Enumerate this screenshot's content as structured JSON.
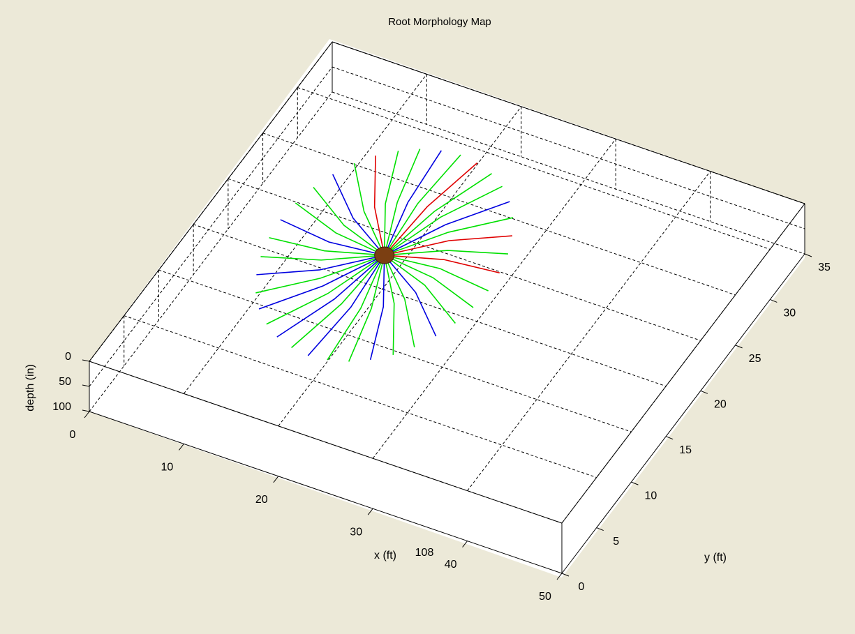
{
  "chart_data": {
    "type": "root-map-3d",
    "title": "Root Morphology Map",
    "xlabel": "x (ft)",
    "ylabel": "y (ft)",
    "zlabel": "depth (in)",
    "annotation": "108",
    "xlim": [
      0,
      50
    ],
    "xticks": [
      0,
      10,
      20,
      30,
      40,
      50
    ],
    "ylim": [
      0,
      35
    ],
    "yticks": [
      0,
      5,
      10,
      15,
      20,
      25,
      30,
      35
    ],
    "zlim": [
      0,
      100
    ],
    "zticks": [
      0,
      50,
      100
    ],
    "grid": true,
    "trunk": {
      "x": 18,
      "y": 18,
      "color": "#7b3f12"
    },
    "roots": [
      {
        "color": "#00e000",
        "x": [
          18,
          23.5,
          29
        ],
        "y": [
          18,
          18.5,
          18
        ]
      },
      {
        "color": "#e00000",
        "x": [
          18,
          23.3,
          28.8
        ],
        "y": [
          18,
          19.4,
          19.9
        ]
      },
      {
        "color": "#00e000",
        "x": [
          18,
          23.0,
          28.3
        ],
        "y": [
          18,
          20.3,
          21.8
        ]
      },
      {
        "color": "#e00000",
        "x": [
          18,
          22.5,
          27.5
        ],
        "y": [
          18,
          21.2,
          23.5
        ]
      },
      {
        "color": "#00e000",
        "x": [
          18,
          21.9,
          26.4
        ],
        "y": [
          18,
          21.9,
          25.1
        ]
      },
      {
        "color": "#0000e0",
        "x": [
          18,
          21.2,
          25.1
        ],
        "y": [
          18,
          22.5,
          26.4
        ]
      },
      {
        "color": "#00e000",
        "x": [
          18,
          20.3,
          23.5
        ],
        "y": [
          18,
          23.0,
          27.5
        ]
      },
      {
        "color": "#00e000",
        "x": [
          18,
          19.4,
          21.8
        ],
        "y": [
          18,
          23.3,
          28.3
        ]
      },
      {
        "color": "#e00000",
        "x": [
          18,
          18.5,
          19.9
        ],
        "y": [
          18,
          23.5,
          28.8
        ]
      },
      {
        "color": "#00e000",
        "x": [
          18,
          17.5,
          18
        ],
        "y": [
          18,
          23.5,
          29
        ]
      },
      {
        "color": "#0000e0",
        "x": [
          18,
          16.6,
          16.1
        ],
        "y": [
          18,
          23.3,
          28.8
        ]
      },
      {
        "color": "#00e000",
        "x": [
          18,
          15.7,
          14.2
        ],
        "y": [
          18,
          23.0,
          28.3
        ]
      },
      {
        "color": "#00e000",
        "x": [
          18,
          14.8,
          12.5
        ],
        "y": [
          18,
          22.5,
          27.5
        ]
      },
      {
        "color": "#e00000",
        "x": [
          18,
          14.1,
          10.9
        ],
        "y": [
          18,
          21.9,
          26.4
        ]
      },
      {
        "color": "#00e000",
        "x": [
          18,
          13.5,
          9.6
        ],
        "y": [
          18,
          21.2,
          25.1
        ]
      },
      {
        "color": "#0000e0",
        "x": [
          18,
          13.0,
          8.5
        ],
        "y": [
          18,
          20.3,
          23.5
        ]
      },
      {
        "color": "#00e000",
        "x": [
          18,
          12.7,
          7.7
        ],
        "y": [
          18,
          19.4,
          21.8
        ]
      },
      {
        "color": "#00e000",
        "x": [
          18,
          12.5,
          7.2
        ],
        "y": [
          18,
          18.5,
          19.9
        ]
      },
      {
        "color": "#0000e0",
        "x": [
          18,
          12.5,
          7
        ],
        "y": [
          18,
          17.5,
          18
        ]
      },
      {
        "color": "#00e000",
        "x": [
          18,
          12.7,
          7.2
        ],
        "y": [
          18,
          16.6,
          16.1
        ]
      },
      {
        "color": "#00e000",
        "x": [
          18,
          13.0,
          7.7
        ],
        "y": [
          18,
          15.7,
          14.2
        ]
      },
      {
        "color": "#0000e0",
        "x": [
          18,
          13.5,
          8.5
        ],
        "y": [
          18,
          14.8,
          12.5
        ]
      },
      {
        "color": "#00e000",
        "x": [
          18,
          14.1,
          9.6
        ],
        "y": [
          18,
          14.1,
          10.9
        ]
      },
      {
        "color": "#0000e0",
        "x": [
          18,
          14.8,
          10.9
        ],
        "y": [
          18,
          13.5,
          9.6
        ]
      },
      {
        "color": "#00e000",
        "x": [
          18,
          15.7,
          12.5
        ],
        "y": [
          18,
          13.0,
          8.5
        ]
      },
      {
        "color": "#0000e0",
        "x": [
          18,
          16.6,
          14.2
        ],
        "y": [
          18,
          12.7,
          7.7
        ]
      },
      {
        "color": "#00e000",
        "x": [
          18,
          17.5,
          16.1
        ],
        "y": [
          18,
          12.5,
          7.2
        ]
      },
      {
        "color": "#0000e0",
        "x": [
          18,
          18.5,
          18
        ],
        "y": [
          18,
          12.5,
          7
        ]
      },
      {
        "color": "#00e000",
        "x": [
          18,
          19.4,
          19.9
        ],
        "y": [
          18,
          12.7,
          7.2
        ]
      },
      {
        "color": "#00e000",
        "x": [
          18,
          20.3,
          21.8
        ],
        "y": [
          18,
          13.0,
          7.7
        ]
      },
      {
        "color": "#0000e0",
        "x": [
          18,
          21.2,
          23.5
        ],
        "y": [
          18,
          13.5,
          8.5
        ]
      },
      {
        "color": "#00e000",
        "x": [
          18,
          21.9,
          25.1
        ],
        "y": [
          18,
          14.1,
          9.6
        ]
      },
      {
        "color": "#00e000",
        "x": [
          18,
          22.5,
          26.4
        ],
        "y": [
          18,
          14.8,
          10.9
        ]
      },
      {
        "color": "#0000e0",
        "x": [
          18,
          23.0,
          27.5
        ],
        "y": [
          18,
          15.7,
          12.5
        ]
      },
      {
        "color": "#00e000",
        "x": [
          18,
          23.3,
          28.3
        ],
        "y": [
          18,
          16.6,
          14.2
        ]
      },
      {
        "color": "#00e000",
        "x": [
          18,
          23.5,
          28.8
        ],
        "y": [
          18,
          17.5,
          16.1
        ]
      }
    ]
  }
}
